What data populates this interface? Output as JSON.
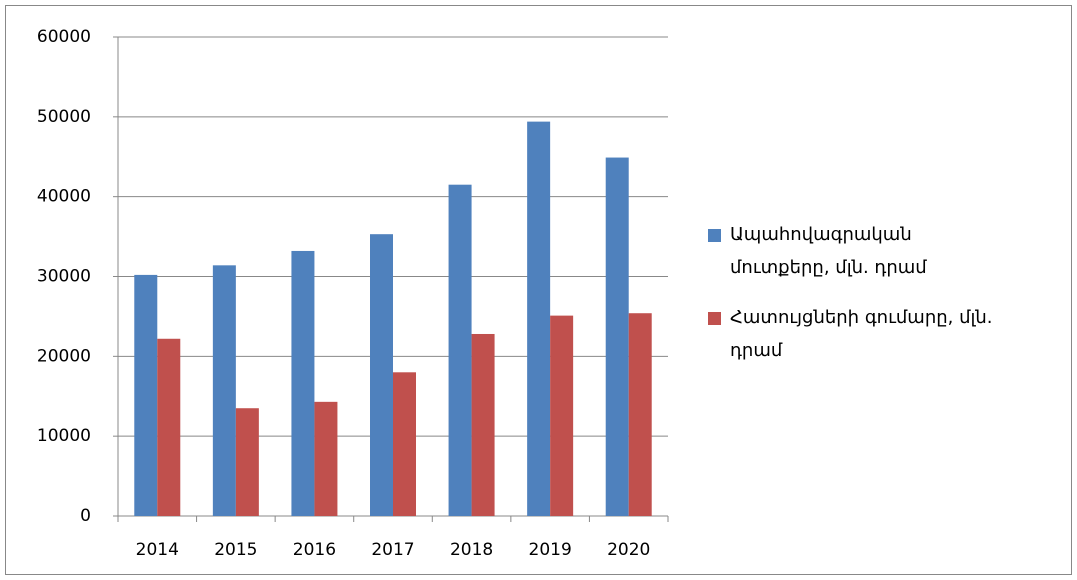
{
  "chart_data": {
    "type": "bar",
    "categories": [
      "2014",
      "2015",
      "2016",
      "2017",
      "2018",
      "2019",
      "2020"
    ],
    "series": [
      {
        "name": "Ապահովագրական մուտքերը, մլն. դրամ",
        "color": "#4f81bd",
        "values": [
          30200,
          31400,
          33200,
          35300,
          41500,
          49400,
          44900
        ]
      },
      {
        "name": "Հատույցների գումարը, մլն. դրամ",
        "color": "#c0504d",
        "values": [
          22200,
          13500,
          14300,
          18000,
          22800,
          25100,
          25400
        ]
      }
    ],
    "ylim": [
      0,
      60000
    ],
    "yticks": [
      0,
      10000,
      20000,
      30000,
      40000,
      50000,
      60000
    ],
    "grid": true,
    "legend": "right"
  }
}
